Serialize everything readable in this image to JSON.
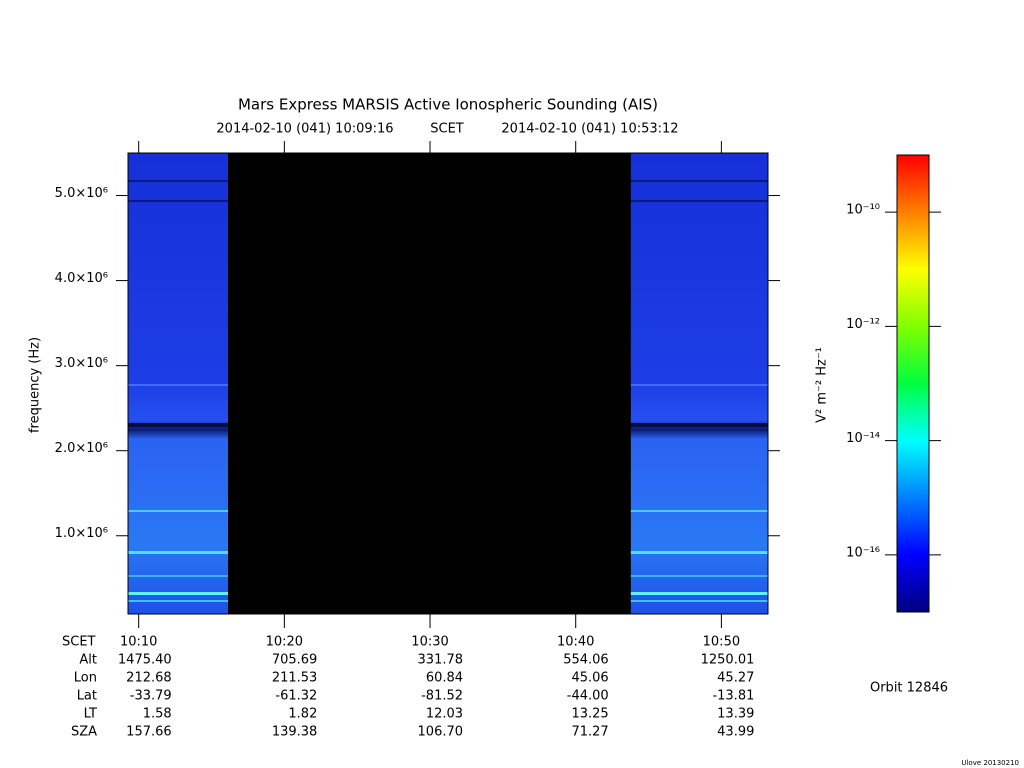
{
  "chart_data": {
    "type": "spectrogram",
    "title": "Mars Express MARSIS Active Ionospheric Sounding (AIS)",
    "subtitle_start": "2014-02-10 (041) 10:09:16",
    "subtitle_label": "SCET",
    "subtitle_end": "2014-02-10 (041) 10:53:12",
    "ylabel": "frequency (Hz)",
    "xlim": [
      36556,
      39192
    ],
    "xticks": [
      {
        "value": 36600,
        "label": "10:10"
      },
      {
        "value": 37200,
        "label": "10:20"
      },
      {
        "value": 37800,
        "label": "10:30"
      },
      {
        "value": 38400,
        "label": "10:40"
      },
      {
        "value": 39000,
        "label": "10:50"
      }
    ],
    "ylim": [
      80000,
      5500000
    ],
    "yticks": [
      {
        "value": 1000000,
        "label": "1.0×10⁶"
      },
      {
        "value": 2000000,
        "label": "2.0×10⁶"
      },
      {
        "value": 3000000,
        "label": "3.0×10⁶"
      },
      {
        "value": 4000000,
        "label": "4.0×10⁶"
      },
      {
        "value": 5000000,
        "label": "5.0×10⁶"
      }
    ],
    "segments": [
      [
        36556,
        36968
      ],
      [
        38627,
        39192
      ]
    ],
    "colorbar": {
      "label": "V² m⁻² Hz⁻¹",
      "log": true,
      "zlim": [
        1e-17,
        1e-09
      ],
      "ticks": [
        {
          "value": 1e-10,
          "label": "10⁻¹⁰"
        },
        {
          "value": 1e-12,
          "label": "10⁻¹²"
        },
        {
          "value": 1e-14,
          "label": "10⁻¹⁴"
        },
        {
          "value": 1e-16,
          "label": "10⁻¹⁶"
        }
      ],
      "colormap": [
        "#000080",
        "#0000ff",
        "#0080ff",
        "#00ffff",
        "#00ff40",
        "#80ff00",
        "#ffff00",
        "#ff8000",
        "#ff0000"
      ]
    }
  },
  "ephemeris": {
    "scet_label": "SCET",
    "rows": [
      {
        "label": "Alt",
        "values": [
          "1475.40",
          "705.69",
          "331.78",
          "554.06",
          "1250.01"
        ]
      },
      {
        "label": "Lon",
        "values": [
          "212.68",
          "211.53",
          "60.84",
          "45.06",
          "45.27"
        ]
      },
      {
        "label": "Lat",
        "values": [
          "-33.79",
          "-61.32",
          "-81.52",
          "-44.00",
          "-13.81"
        ]
      },
      {
        "label": "LT",
        "values": [
          "1.58",
          "1.82",
          "12.03",
          "13.25",
          "13.39"
        ]
      },
      {
        "label": "SZA",
        "values": [
          "157.66",
          "139.38",
          "106.70",
          "71.27",
          "43.99"
        ]
      }
    ]
  },
  "orbit": "Orbit 12846",
  "footer": "Ulove 20130210"
}
